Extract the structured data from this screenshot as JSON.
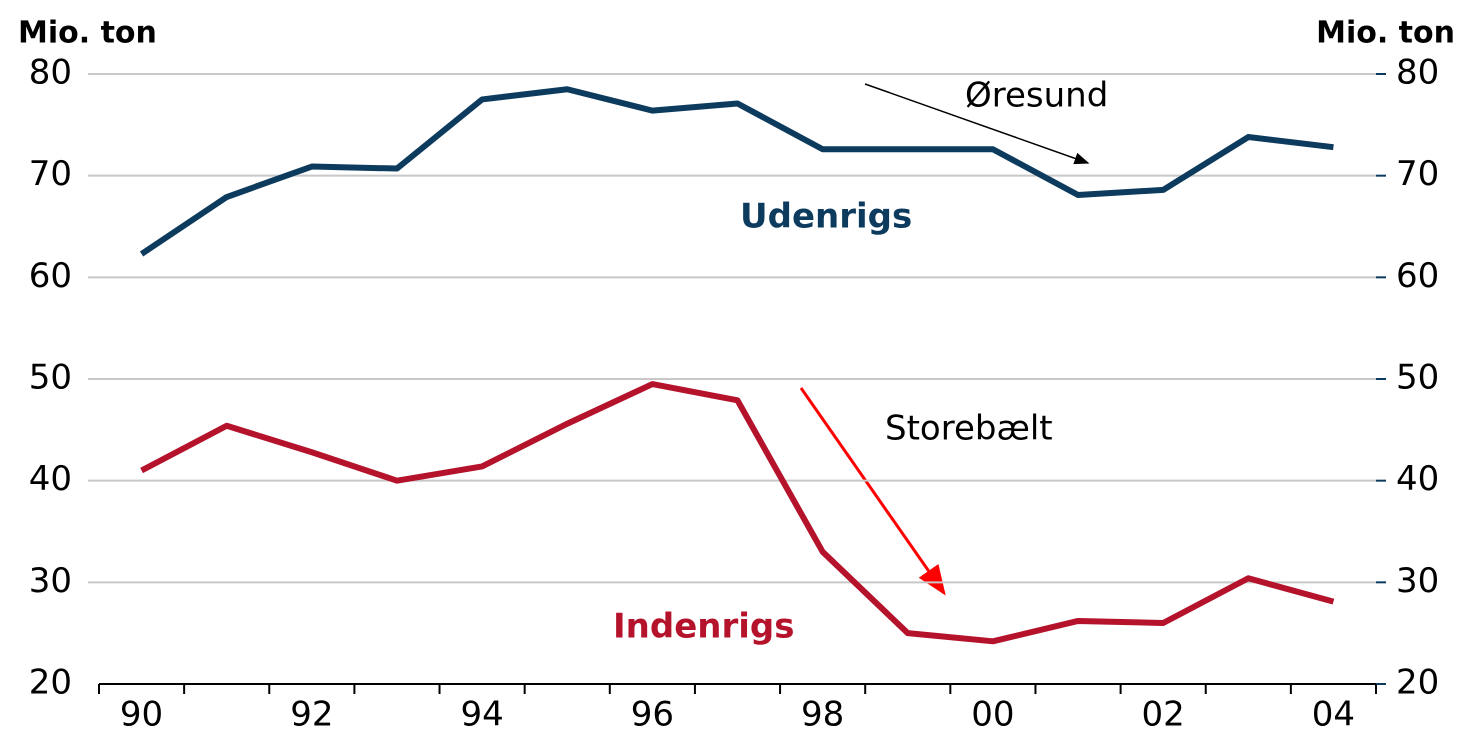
{
  "chart_data": {
    "type": "line",
    "y_label": "Mio. ton",
    "y2_label": "Mio. ton",
    "categories": [
      "90",
      null,
      "92",
      null,
      "94",
      null,
      "96",
      null,
      "98",
      null,
      "00",
      null,
      "02",
      null,
      "04"
    ],
    "series": [
      {
        "name": "Udenrigs",
        "color": "#0d3b5e",
        "values": [
          62.3,
          67.9,
          70.9,
          70.7,
          77.5,
          78.5,
          76.4,
          77.1,
          72.6,
          72.6,
          72.6,
          68.1,
          68.6,
          73.8,
          72.8
        ]
      },
      {
        "name": "Indenrigs",
        "color": "#b5132b",
        "values": [
          41.0,
          45.4,
          42.8,
          40.0,
          41.4,
          45.6,
          49.5,
          47.9,
          33.0,
          25.0,
          24.2,
          26.2,
          26.0,
          30.4,
          28.1
        ]
      }
    ],
    "ylim": [
      20,
      80
    ],
    "yticks": [
      20,
      30,
      40,
      50,
      60,
      70,
      80
    ],
    "y2lim": [
      20,
      80
    ],
    "y2ticks": [
      20,
      30,
      40,
      50,
      60,
      70,
      80
    ],
    "grid": true,
    "annotations": [
      {
        "text": "Øresund",
        "color": "#000000"
      },
      {
        "text": "Storebælt",
        "color": "#ff0000"
      }
    ]
  }
}
